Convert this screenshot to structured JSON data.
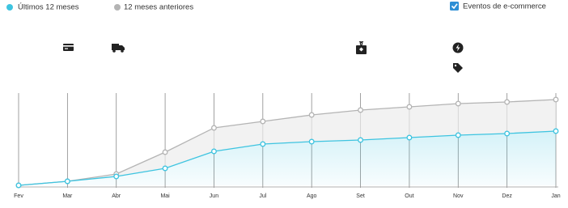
{
  "chart_data": {
    "type": "line",
    "categories": [
      "Fev",
      "Mar",
      "Abr",
      "Mai",
      "Jun",
      "Jul",
      "Ago",
      "Set",
      "Out",
      "Nov",
      "Dez",
      "Jan"
    ],
    "series": [
      {
        "name": "Últimos 12 meses",
        "color": "#3ec4e0",
        "values": [
          0,
          5,
          11,
          21,
          42,
          51,
          54,
          56,
          59,
          62,
          64,
          67
        ]
      },
      {
        "name": "12 meses anteriores",
        "color": "#b4b4b4",
        "values": [
          0,
          5,
          14,
          41,
          71,
          79,
          87,
          93,
          97,
          101,
          103,
          106
        ]
      }
    ],
    "ylim": [
      0,
      114
    ]
  },
  "controls": {
    "ecommerce_events": "Eventos de e-commerce",
    "checked": true
  }
}
